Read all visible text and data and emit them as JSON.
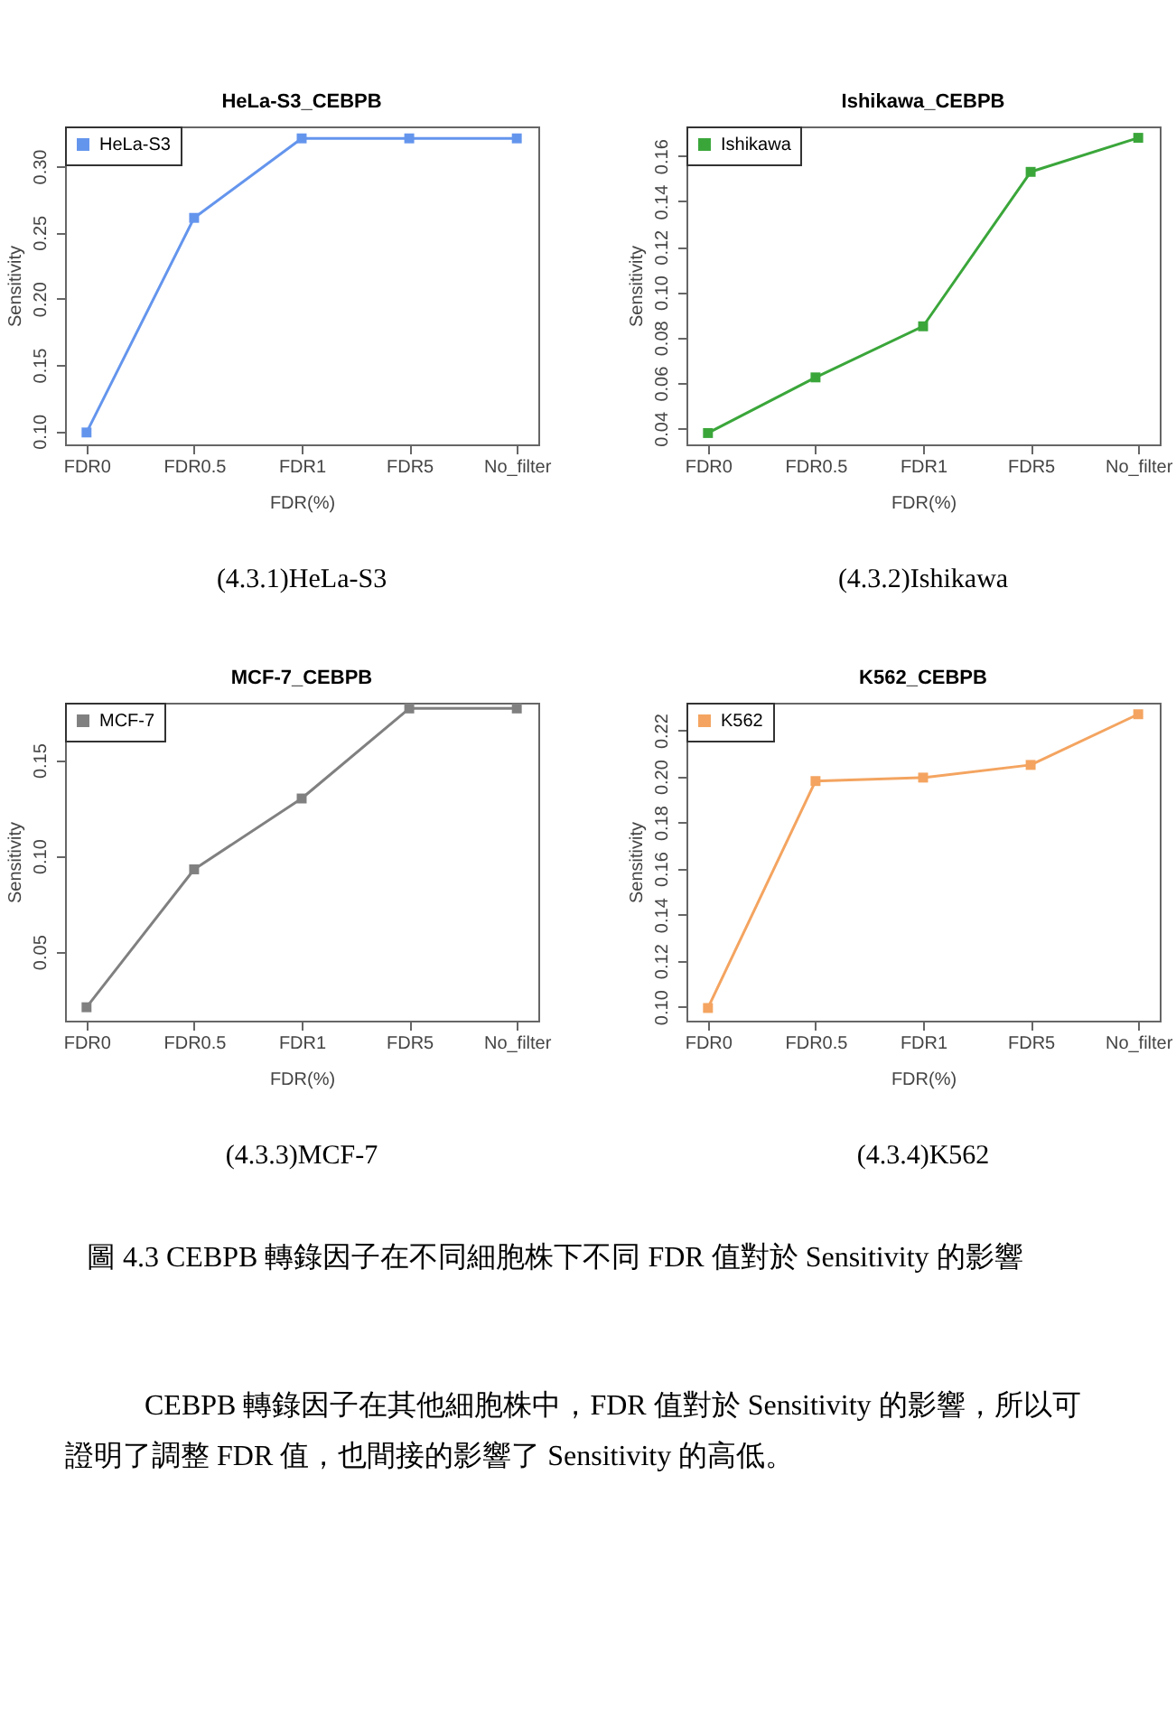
{
  "chart_data": [
    {
      "type": "line",
      "title": "HeLa-S3_CEBPB",
      "xlabel": "FDR(%)",
      "ylabel": "Sensitivity",
      "categories": [
        "FDR0",
        "FDR0.5",
        "FDR1",
        "FDR5",
        "No_filter"
      ],
      "series": [
        {
          "name": "HeLa-S3",
          "color": "#6495ed",
          "values": [
            0.099,
            0.261,
            0.321,
            0.321,
            0.321
          ]
        }
      ],
      "ylim": [
        0.09,
        0.33
      ],
      "yticks": [
        {
          "value": 0.1,
          "label": "0.10"
        },
        {
          "value": 0.15,
          "label": "0.15"
        },
        {
          "value": 0.2,
          "label": "0.20"
        },
        {
          "value": 0.25,
          "label": "0.25"
        },
        {
          "value": 0.3,
          "label": "0.30"
        }
      ],
      "legend": "top left",
      "marker": "square",
      "line_style": "solid",
      "grid": false,
      "annotations": [
        "(4.3.1)HeLa-S3"
      ]
    },
    {
      "type": "line",
      "title": "Ishikawa_CEBPB",
      "xlabel": "FDR(%)",
      "ylabel": "Sensitivity",
      "categories": [
        "FDR0",
        "FDR0.5",
        "FDR1",
        "FDR5",
        "No_filter"
      ],
      "series": [
        {
          "name": "Ishikawa",
          "color": "#3aa63a",
          "values": [
            0.038,
            0.0625,
            0.085,
            0.153,
            0.168
          ]
        }
      ],
      "ylim": [
        0.033,
        0.173
      ],
      "yticks": [
        {
          "value": 0.04,
          "label": "0.04"
        },
        {
          "value": 0.06,
          "label": "0.06"
        },
        {
          "value": 0.08,
          "label": "0.08"
        },
        {
          "value": 0.1,
          "label": "0.10"
        },
        {
          "value": 0.12,
          "label": "0.12"
        },
        {
          "value": 0.14,
          "label": "0.14"
        },
        {
          "value": 0.16,
          "label": "0.16"
        }
      ],
      "legend": "top left",
      "marker": "square",
      "line_style": "solid",
      "grid": false,
      "annotations": [
        "(4.3.2)Ishikawa"
      ]
    },
    {
      "type": "line",
      "title": "MCF-7_CEBPB",
      "xlabel": "FDR(%)",
      "ylabel": "Sensitivity",
      "categories": [
        "FDR0",
        "FDR0.5",
        "FDR1",
        "FDR5",
        "No_filter"
      ],
      "series": [
        {
          "name": "MCF-7",
          "color": "#808080",
          "values": [
            0.021,
            0.093,
            0.13,
            0.177,
            0.177
          ]
        }
      ],
      "ylim": [
        0.014,
        0.18
      ],
      "yticks": [
        {
          "value": 0.05,
          "label": "0.05"
        },
        {
          "value": 0.1,
          "label": "0.10"
        },
        {
          "value": 0.15,
          "label": "0.15"
        }
      ],
      "legend": "top left",
      "marker": "square",
      "line_style": "solid",
      "grid": false,
      "annotations": [
        "(4.3.3)MCF-7"
      ]
    },
    {
      "type": "line",
      "title": "K562_CEBPB",
      "xlabel": "FDR(%)",
      "ylabel": "Sensitivity",
      "categories": [
        "FDR0",
        "FDR0.5",
        "FDR1",
        "FDR5",
        "No_filter"
      ],
      "series": [
        {
          "name": "K562",
          "color": "#f4a460",
          "values": [
            0.0995,
            0.198,
            0.1995,
            0.205,
            0.227
          ]
        }
      ],
      "ylim": [
        0.094,
        0.232
      ],
      "yticks": [
        {
          "value": 0.1,
          "label": "0.10"
        },
        {
          "value": 0.12,
          "label": "0.12"
        },
        {
          "value": 0.14,
          "label": "0.14"
        },
        {
          "value": 0.16,
          "label": "0.16"
        },
        {
          "value": 0.18,
          "label": "0.18"
        },
        {
          "value": 0.2,
          "label": "0.20"
        },
        {
          "value": 0.22,
          "label": "0.22"
        }
      ],
      "legend": "top left",
      "marker": "square",
      "line_style": "solid",
      "grid": false,
      "annotations": [
        "(4.3.4)K562"
      ]
    },
    {
      "type": "other",
      "annotations": [
        "圖 4.3 CEBPB 轉錄因子在不同細胞株下不同 FDR 值對於 Sensitivity 的影響",
        "CEBPB 轉錄因子在其他細胞株中，FDR 值對於 Sensitivity 的影響，所以可",
        "證明了調整 FDR 值，也間接的影響了 Sensitivity 的高低。"
      ]
    }
  ]
}
